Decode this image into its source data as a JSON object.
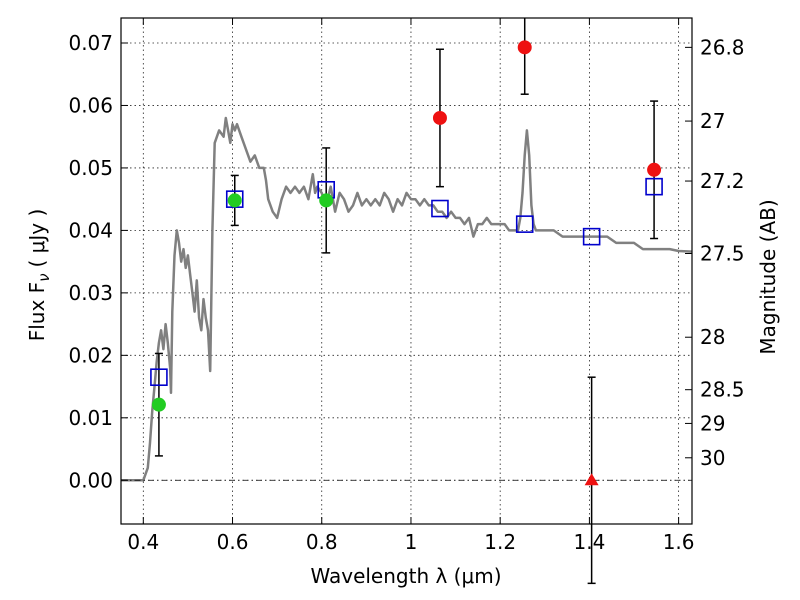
{
  "chart_data": {
    "type": "scatter",
    "title": "",
    "xlabel": "Wavelength  λ (μm)",
    "ylabel": "Flux  F",
    "ylabel_sub": "ν",
    "ylabel_unit": "( μJy )",
    "y2label": "Magnitude (AB)",
    "xlim": [
      0.35,
      1.63
    ],
    "ylim": [
      -0.007,
      0.074
    ],
    "grid": true,
    "x_ticks": [
      0.4,
      0.6,
      0.8,
      1.0,
      1.2,
      1.4,
      1.6
    ],
    "x_tick_labels": [
      "0.4",
      "0.6",
      "0.8",
      "1",
      "1.2",
      "1.4",
      "1.6"
    ],
    "y_ticks": [
      0.0,
      0.01,
      0.02,
      0.03,
      0.04,
      0.05,
      0.06,
      0.07
    ],
    "y_tick_labels": [
      "0.00",
      "0.01",
      "0.02",
      "0.03",
      "0.04",
      "0.05",
      "0.06",
      "0.07"
    ],
    "mag_ticks": [
      {
        "label": "26.8",
        "flux": 0.0693
      },
      {
        "label": "27",
        "flux": 0.0575
      },
      {
        "label": "27.2",
        "flux": 0.0479
      },
      {
        "label": "27.5",
        "flux": 0.0363
      },
      {
        "label": "28",
        "flux": 0.0229
      },
      {
        "label": "28.5",
        "flux": 0.0145
      },
      {
        "label": "29",
        "flux": 0.0091
      },
      {
        "label": "30",
        "flux": 0.0036
      }
    ],
    "zero_line": 0.0,
    "template_spectrum": {
      "color": "#808080",
      "points": [
        [
          0.35,
          0.0
        ],
        [
          0.4,
          0.0
        ],
        [
          0.41,
          0.002
        ],
        [
          0.415,
          0.006
        ],
        [
          0.42,
          0.011
        ],
        [
          0.425,
          0.015
        ],
        [
          0.43,
          0.019
        ],
        [
          0.435,
          0.022
        ],
        [
          0.44,
          0.024
        ],
        [
          0.445,
          0.021
        ],
        [
          0.45,
          0.025
        ],
        [
          0.455,
          0.022
        ],
        [
          0.46,
          0.018
        ],
        [
          0.462,
          0.014
        ],
        [
          0.465,
          0.027
        ],
        [
          0.47,
          0.036
        ],
        [
          0.475,
          0.04
        ],
        [
          0.48,
          0.038
        ],
        [
          0.485,
          0.035
        ],
        [
          0.49,
          0.037
        ],
        [
          0.495,
          0.034
        ],
        [
          0.5,
          0.036
        ],
        [
          0.505,
          0.033
        ],
        [
          0.51,
          0.03
        ],
        [
          0.515,
          0.027
        ],
        [
          0.52,
          0.032
        ],
        [
          0.525,
          0.026
        ],
        [
          0.53,
          0.024
        ],
        [
          0.535,
          0.029
        ],
        [
          0.54,
          0.026
        ],
        [
          0.545,
          0.024
        ],
        [
          0.55,
          0.0175
        ],
        [
          0.555,
          0.04
        ],
        [
          0.56,
          0.054
        ],
        [
          0.57,
          0.056
        ],
        [
          0.58,
          0.055
        ],
        [
          0.585,
          0.058
        ],
        [
          0.59,
          0.056
        ],
        [
          0.595,
          0.054
        ],
        [
          0.6,
          0.057
        ],
        [
          0.605,
          0.056
        ],
        [
          0.61,
          0.057
        ],
        [
          0.62,
          0.055
        ],
        [
          0.63,
          0.053
        ],
        [
          0.64,
          0.051
        ],
        [
          0.65,
          0.052
        ],
        [
          0.66,
          0.05
        ],
        [
          0.67,
          0.05
        ],
        [
          0.675,
          0.048
        ],
        [
          0.68,
          0.045
        ],
        [
          0.69,
          0.043
        ],
        [
          0.7,
          0.042
        ],
        [
          0.71,
          0.045
        ],
        [
          0.72,
          0.047
        ],
        [
          0.73,
          0.046
        ],
        [
          0.74,
          0.047
        ],
        [
          0.75,
          0.046
        ],
        [
          0.76,
          0.047
        ],
        [
          0.77,
          0.045
        ],
        [
          0.78,
          0.049
        ],
        [
          0.785,
          0.046
        ],
        [
          0.79,
          0.047
        ],
        [
          0.8,
          0.046
        ],
        [
          0.81,
          0.044
        ],
        [
          0.82,
          0.047
        ],
        [
          0.83,
          0.043
        ],
        [
          0.84,
          0.046
        ],
        [
          0.85,
          0.045
        ],
        [
          0.86,
          0.043
        ],
        [
          0.87,
          0.044
        ],
        [
          0.88,
          0.046
        ],
        [
          0.89,
          0.044
        ],
        [
          0.9,
          0.045
        ],
        [
          0.91,
          0.044
        ],
        [
          0.92,
          0.045
        ],
        [
          0.93,
          0.044
        ],
        [
          0.94,
          0.046
        ],
        [
          0.95,
          0.045
        ],
        [
          0.96,
          0.043
        ],
        [
          0.97,
          0.045
        ],
        [
          0.98,
          0.044
        ],
        [
          0.99,
          0.046
        ],
        [
          1.0,
          0.045
        ],
        [
          1.01,
          0.045
        ],
        [
          1.02,
          0.044
        ],
        [
          1.03,
          0.045
        ],
        [
          1.04,
          0.044
        ],
        [
          1.05,
          0.044
        ],
        [
          1.06,
          0.043
        ],
        [
          1.07,
          0.043
        ],
        [
          1.08,
          0.042
        ],
        [
          1.09,
          0.043
        ],
        [
          1.1,
          0.042
        ],
        [
          1.11,
          0.042
        ],
        [
          1.12,
          0.041
        ],
        [
          1.13,
          0.042
        ],
        [
          1.14,
          0.039
        ],
        [
          1.15,
          0.041
        ],
        [
          1.16,
          0.041
        ],
        [
          1.17,
          0.042
        ],
        [
          1.18,
          0.041
        ],
        [
          1.19,
          0.041
        ],
        [
          1.2,
          0.041
        ],
        [
          1.21,
          0.041
        ],
        [
          1.22,
          0.04
        ],
        [
          1.23,
          0.04
        ],
        [
          1.24,
          0.04
        ],
        [
          1.245,
          0.042
        ],
        [
          1.25,
          0.046
        ],
        [
          1.255,
          0.052
        ],
        [
          1.26,
          0.056
        ],
        [
          1.265,
          0.052
        ],
        [
          1.27,
          0.044
        ],
        [
          1.275,
          0.041
        ],
        [
          1.28,
          0.04
        ],
        [
          1.3,
          0.04
        ],
        [
          1.32,
          0.04
        ],
        [
          1.34,
          0.039
        ],
        [
          1.36,
          0.039
        ],
        [
          1.38,
          0.039
        ],
        [
          1.4,
          0.039
        ],
        [
          1.42,
          0.039
        ],
        [
          1.44,
          0.039
        ],
        [
          1.46,
          0.038
        ],
        [
          1.48,
          0.038
        ],
        [
          1.5,
          0.038
        ],
        [
          1.52,
          0.037
        ],
        [
          1.54,
          0.037
        ],
        [
          1.56,
          0.037
        ],
        [
          1.58,
          0.037
        ],
        [
          1.6,
          0.0367
        ],
        [
          1.63,
          0.0366
        ]
      ]
    },
    "series": [
      {
        "name": "",
        "marker": "square-open",
        "color": "#0000cc",
        "points": [
          {
            "x": 0.435,
            "y": 0.0165
          },
          {
            "x": 0.605,
            "y": 0.045
          },
          {
            "x": 0.81,
            "y": 0.0465
          },
          {
            "x": 1.065,
            "y": 0.0435
          },
          {
            "x": 1.255,
            "y": 0.041
          },
          {
            "x": 1.405,
            "y": 0.039
          },
          {
            "x": 1.545,
            "y": 0.047
          }
        ]
      },
      {
        "name": "",
        "marker": "circle",
        "color": "#22cc22",
        "points": [
          {
            "x": 0.435,
            "y": 0.0121,
            "yerr": 0.0082
          },
          {
            "x": 0.605,
            "y": 0.0448,
            "yerr": 0.004
          },
          {
            "x": 0.81,
            "y": 0.0448,
            "yerr": 0.0084
          }
        ]
      },
      {
        "name": "",
        "marker": "circle",
        "color": "#ee1111",
        "points": [
          {
            "x": 1.065,
            "y": 0.058,
            "yerr": 0.011
          },
          {
            "x": 1.255,
            "y": 0.0693,
            "yerr": 0.0075
          },
          {
            "x": 1.545,
            "y": 0.0497,
            "yerr": 0.011
          }
        ]
      },
      {
        "name": "",
        "marker": "triangle",
        "color": "#ee1111",
        "points": [
          {
            "x": 1.405,
            "y": 0.0,
            "yerr": 0.0165
          }
        ]
      }
    ]
  }
}
